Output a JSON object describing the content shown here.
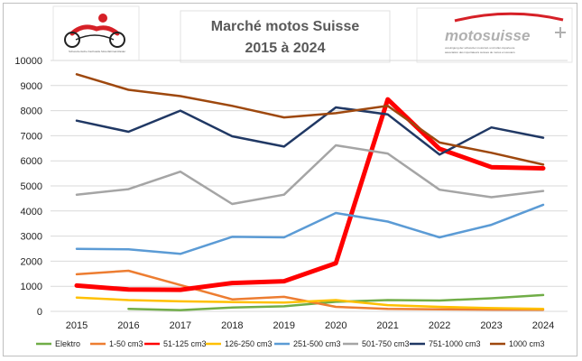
{
  "chart_data": {
    "type": "line",
    "title_line1": "Marché motos Suisse",
    "title_line2": "2015 à 2024",
    "x": [
      "2015",
      "2016",
      "2017",
      "2018",
      "2019",
      "2020",
      "2021",
      "2022",
      "2023",
      "2024"
    ],
    "y_ticks": [
      "0",
      "1000",
      "2000",
      "3000",
      "4000",
      "5000",
      "6000",
      "7000",
      "8000",
      "9000",
      "10000"
    ],
    "ylim": [
      0,
      10000
    ],
    "grid": true,
    "legend_position": "bottom",
    "series": [
      {
        "name": "Elektro",
        "color": "#70ad47",
        "width": 2.5,
        "values": [
          null,
          100,
          50,
          150,
          200,
          380,
          450,
          430,
          520,
          650
        ]
      },
      {
        "name": "1-50 cm3",
        "color": "#ed7d31",
        "width": 2.5,
        "values": [
          1480,
          1620,
          1050,
          480,
          580,
          180,
          100,
          80,
          70,
          60
        ]
      },
      {
        "name": "51-125 cm3",
        "color": "#ff0000",
        "width": 5,
        "values": [
          1030,
          870,
          860,
          1130,
          1200,
          1920,
          8450,
          6480,
          5750,
          5700
        ]
      },
      {
        "name": "126-250 cm3",
        "color": "#ffc000",
        "width": 2.5,
        "values": [
          550,
          450,
          400,
          370,
          350,
          450,
          250,
          180,
          130,
          100
        ]
      },
      {
        "name": "251-500 cm3",
        "color": "#5b9bd5",
        "width": 2.5,
        "values": [
          2490,
          2470,
          2290,
          2970,
          2950,
          3920,
          3580,
          2950,
          3450,
          4250
        ]
      },
      {
        "name": "501-750 cm3",
        "color": "#a5a5a5",
        "width": 2.5,
        "values": [
          4650,
          4870,
          5570,
          4280,
          4650,
          6620,
          6290,
          4850,
          4550,
          4800
        ]
      },
      {
        "name": "751-1000 cm3",
        "color": "#203864",
        "width": 2.5,
        "values": [
          7600,
          7160,
          8000,
          6980,
          6570,
          8130,
          7850,
          6250,
          7330,
          6920
        ]
      },
      {
        "name": "1000 cm3",
        "color": "#9e480e",
        "width": 2.5,
        "values": [
          9450,
          8830,
          8580,
          8190,
          7730,
          7900,
          8190,
          6730,
          6320,
          5850
        ]
      }
    ]
  },
  "logos": {
    "left_small_text": "Schweizerische Fachstelle Motorfahrrad-Raider",
    "right_brand": "motosuisse",
    "right_tagline_1": "vereinigung der schweizer motorrad- und roller-importeure",
    "right_tagline_2": "association des importateurs suisses de motos et scooters"
  }
}
